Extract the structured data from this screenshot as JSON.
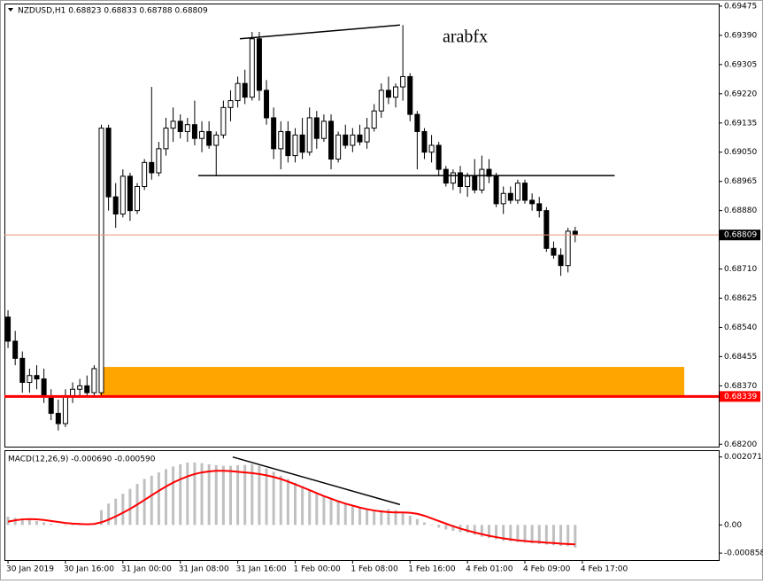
{
  "chart_data": [
    {
      "type": "candlestick",
      "header": "NZDUSD,H1  0.68823 0.68833 0.68788 0.68809",
      "annotation": "arabfx",
      "up_color": "#ffffff",
      "down_color": "#000000",
      "edge_color": "#000000",
      "xlim": [
        -0.5,
        99
      ],
      "ylim": [
        0.68193,
        0.6948
      ],
      "yticks": [
        0.69475,
        {
          "value": 0.6939,
          "label": "0.69390"
        },
        0.69305,
        {
          "value": 0.6922,
          "label": "0.69220"
        },
        0.69135,
        {
          "value": 0.6905,
          "label": "0.69050"
        },
        0.68965,
        {
          "value": 0.6888,
          "label": "0.68880"
        },
        {
          "value": 0.6871,
          "label": "0.68710"
        },
        0.68625,
        {
          "value": 0.6854,
          "label": "0.68540"
        },
        0.68455,
        {
          "value": 0.6837,
          "label": "0.68370"
        },
        {
          "value": 0.682,
          "label": "0.68200"
        }
      ],
      "open": [
        0.6857,
        0.685,
        0.6845,
        0.6838,
        0.684,
        0.6839,
        0.6834,
        0.6829,
        0.6826,
        0.6834,
        0.6836,
        0.6837,
        0.6835,
        0.6835,
        0.6912,
        0.6892,
        0.6887,
        0.6898,
        0.6888,
        0.6895,
        0.6902,
        0.6899,
        0.6906,
        0.6912,
        0.6914,
        0.6911,
        0.6913,
        0.6909,
        0.6911,
        0.6907,
        0.691,
        0.6918,
        0.692,
        0.6925,
        0.6921,
        0.6938,
        0.6923,
        0.6915,
        0.6906,
        0.6911,
        0.6904,
        0.691,
        0.6905,
        0.6915,
        0.6909,
        0.6914,
        0.6903,
        0.691,
        0.6907,
        0.691,
        0.6908,
        0.6912,
        0.6917,
        0.6923,
        0.6921,
        0.6924,
        0.6927,
        0.6916,
        0.6911,
        0.6905,
        0.6907,
        0.69,
        0.6896,
        0.6899,
        0.6895,
        0.6898,
        0.6894,
        0.69,
        0.6898,
        0.689,
        0.6893,
        0.6891,
        0.6896,
        0.6891,
        0.689,
        0.6888,
        0.6877,
        0.6875,
        0.6872,
        0.6882
      ],
      "high": [
        0.6859,
        0.6853,
        0.6847,
        0.6842,
        0.6843,
        0.6842,
        0.6836,
        0.6833,
        0.6836,
        0.6838,
        0.6839,
        0.684,
        0.6843,
        0.6913,
        0.6913,
        0.6896,
        0.69,
        0.6899,
        0.6896,
        0.6903,
        0.6924,
        0.6908,
        0.6915,
        0.6918,
        0.6916,
        0.6915,
        0.692,
        0.6914,
        0.6914,
        0.6911,
        0.692,
        0.6923,
        0.6927,
        0.6929,
        0.694,
        0.694,
        0.6926,
        0.6918,
        0.6914,
        0.6914,
        0.6912,
        0.6915,
        0.6918,
        0.6917,
        0.6916,
        0.6916,
        0.6911,
        0.6913,
        0.6912,
        0.6913,
        0.6915,
        0.6919,
        0.6925,
        0.6927,
        0.6925,
        0.6942,
        0.6928,
        0.6917,
        0.6912,
        0.691,
        0.6908,
        0.6901,
        0.69,
        0.6901,
        0.6899,
        0.6903,
        0.6904,
        0.6903,
        0.6899,
        0.6895,
        0.6895,
        0.6897,
        0.6897,
        0.6893,
        0.6892,
        0.6889,
        0.6879,
        0.6877,
        0.6883,
        0.68833
      ],
      "low": [
        0.6848,
        0.6843,
        0.6835,
        0.6835,
        0.6836,
        0.6832,
        0.6827,
        0.6824,
        0.6825,
        0.6832,
        0.6834,
        0.6834,
        0.6834,
        0.6834,
        0.6888,
        0.6883,
        0.6886,
        0.6885,
        0.6887,
        0.6894,
        0.6897,
        0.6898,
        0.6904,
        0.6908,
        0.6909,
        0.6908,
        0.6907,
        0.6905,
        0.6906,
        0.6898,
        0.6909,
        0.6914,
        0.6918,
        0.6919,
        0.692,
        0.692,
        0.6913,
        0.6903,
        0.69,
        0.6902,
        0.6902,
        0.6903,
        0.6904,
        0.6906,
        0.6908,
        0.69,
        0.6902,
        0.6906,
        0.6905,
        0.6907,
        0.6906,
        0.6911,
        0.6915,
        0.6919,
        0.6918,
        0.692,
        0.6914,
        0.69,
        0.6903,
        0.6902,
        0.6898,
        0.6895,
        0.6894,
        0.6893,
        0.6892,
        0.6893,
        0.6893,
        0.6896,
        0.6889,
        0.6887,
        0.689,
        0.689,
        0.689,
        0.6888,
        0.6886,
        0.6876,
        0.6874,
        0.6869,
        0.687,
        0.68788
      ],
      "close": [
        0.685,
        0.6845,
        0.6838,
        0.684,
        0.6839,
        0.6834,
        0.6829,
        0.6826,
        0.6834,
        0.6836,
        0.6837,
        0.6835,
        0.6842,
        0.6912,
        0.6892,
        0.6887,
        0.6898,
        0.6888,
        0.6895,
        0.6902,
        0.6899,
        0.6906,
        0.6912,
        0.6914,
        0.6911,
        0.6913,
        0.6909,
        0.6911,
        0.6907,
        0.691,
        0.6918,
        0.692,
        0.6925,
        0.6921,
        0.6938,
        0.6923,
        0.6915,
        0.6906,
        0.6911,
        0.6904,
        0.691,
        0.6905,
        0.6915,
        0.6909,
        0.6914,
        0.6903,
        0.691,
        0.6907,
        0.691,
        0.6908,
        0.6912,
        0.6917,
        0.6923,
        0.6921,
        0.6924,
        0.6927,
        0.6916,
        0.6911,
        0.6905,
        0.6907,
        0.69,
        0.6896,
        0.6899,
        0.6895,
        0.6898,
        0.6894,
        0.69,
        0.6898,
        0.689,
        0.6893,
        0.6891,
        0.6896,
        0.6891,
        0.689,
        0.6888,
        0.6877,
        0.6875,
        0.6872,
        0.6882,
        0.68809
      ],
      "trendlines": [
        {
          "x": [
            32.3,
            54.6
          ],
          "y": [
            0.6938,
            0.6942
          ],
          "color": "#000000"
        },
        {
          "x": [
            26.5,
            84.5
          ],
          "y": [
            0.68982,
            0.68982
          ],
          "color": "#000000"
        }
      ],
      "zone": {
        "x": [
          12.8,
          94.2
        ],
        "y": [
          0.68339,
          0.68425
        ],
        "color": "#ffa500"
      },
      "price_line": {
        "value": 0.68809,
        "color": "#e9967a"
      },
      "level_line": {
        "value": 0.68339,
        "color": "#ff0000"
      },
      "xticks": [
        {
          "value": 0,
          "label": "30 Jan 2019"
        },
        {
          "value": 8,
          "label": "30 Jan 16:00"
        },
        {
          "value": 16,
          "label": "31 Jan 00:00"
        },
        {
          "value": 24,
          "label": "31 Jan 08:00"
        },
        {
          "value": 32,
          "label": "31 Jan 16:00"
        },
        {
          "value": 40,
          "label": "1 Feb 00:00"
        },
        {
          "value": 48,
          "label": "1 Feb 08:00"
        },
        {
          "value": 56,
          "label": "1 Feb 16:00"
        },
        {
          "value": 64,
          "label": "4 Feb 01:00"
        },
        {
          "value": 72,
          "label": "4 Feb 09:00"
        },
        {
          "value": 80,
          "label": "4 Feb 17:00"
        }
      ]
    },
    {
      "type": "macd",
      "header": "MACD(12,26,9) -0.000690 -0.000590",
      "ylim": [
        -0.00107,
        0.00225
      ],
      "yticks": [
        0.002071,
        {
          "value": 0,
          "label": "0.00"
        },
        -0.000858
      ],
      "hist_color": "#c0c0c0",
      "signal_color": "#ff0000",
      "histogram": [
        0.00025,
        0.00022,
        0.00018,
        0.00015,
        0.00012,
        8e-05,
        4e-05,
        1e-05,
        -2e-05,
        -2e-05,
        0,
        2e-05,
        5e-05,
        0.00045,
        0.00065,
        0.0008,
        0.00095,
        0.0011,
        0.00125,
        0.0014,
        0.0015,
        0.0016,
        0.0017,
        0.00178,
        0.00185,
        0.0019,
        0.0019,
        0.00188,
        0.00185,
        0.00182,
        0.0018,
        0.0018,
        0.00182,
        0.00183,
        0.00185,
        0.0018,
        0.00172,
        0.00162,
        0.0015,
        0.0014,
        0.00128,
        0.00118,
        0.00108,
        0.00098,
        0.00088,
        0.0008,
        0.00072,
        0.00065,
        0.00058,
        0.00052,
        0.00048,
        0.00045,
        0.00045,
        0.00048,
        0.00045,
        0.00038,
        0.00028,
        0.00018,
        8e-05,
        0,
        -8e-05,
        -0.00014,
        -0.00018,
        -0.00022,
        -0.00024,
        -0.0003,
        -0.00036,
        -0.0004,
        -0.00044,
        -0.00048,
        -0.0005,
        -0.00052,
        -0.00054,
        -0.00056,
        -0.00058,
        -0.0006,
        -0.00062,
        -0.00064,
        -0.00065,
        -0.00069
      ],
      "signal": [
        0.0001,
        0.00014,
        0.00017,
        0.00018,
        0.00017,
        0.00015,
        0.00012,
        9e-05,
        6e-05,
        4e-05,
        3e-05,
        2e-05,
        3e-05,
        8e-05,
        0.00016,
        0.00026,
        0.00037,
        0.00049,
        0.00062,
        0.00076,
        0.0009,
        0.00104,
        0.00117,
        0.00129,
        0.00139,
        0.00148,
        0.00155,
        0.0016,
        0.00163,
        0.00165,
        0.00165,
        0.00164,
        0.00162,
        0.0016,
        0.00158,
        0.00155,
        0.00151,
        0.00146,
        0.0014,
        0.00132,
        0.00124,
        0.00115,
        0.00106,
        0.00097,
        0.00088,
        0.0008,
        0.00072,
        0.00065,
        0.00059,
        0.00053,
        0.00048,
        0.00044,
        0.00041,
        0.00039,
        0.00038,
        0.00038,
        0.00037,
        0.00034,
        0.00028,
        0.0002,
        0.00012,
        4e-05,
        -4e-05,
        -0.00011,
        -0.00017,
        -0.00023,
        -0.00028,
        -0.00033,
        -0.00037,
        -0.00041,
        -0.00044,
        -0.00047,
        -0.00049,
        -0.00051,
        -0.00052,
        -0.00054,
        -0.00055,
        -0.00057,
        -0.00058,
        -0.00059
      ],
      "trendlines": [
        {
          "x": [
            31.3,
            54.6
          ],
          "y": [
            0.00207,
            0.00062
          ],
          "color": "#000000"
        }
      ]
    }
  ]
}
